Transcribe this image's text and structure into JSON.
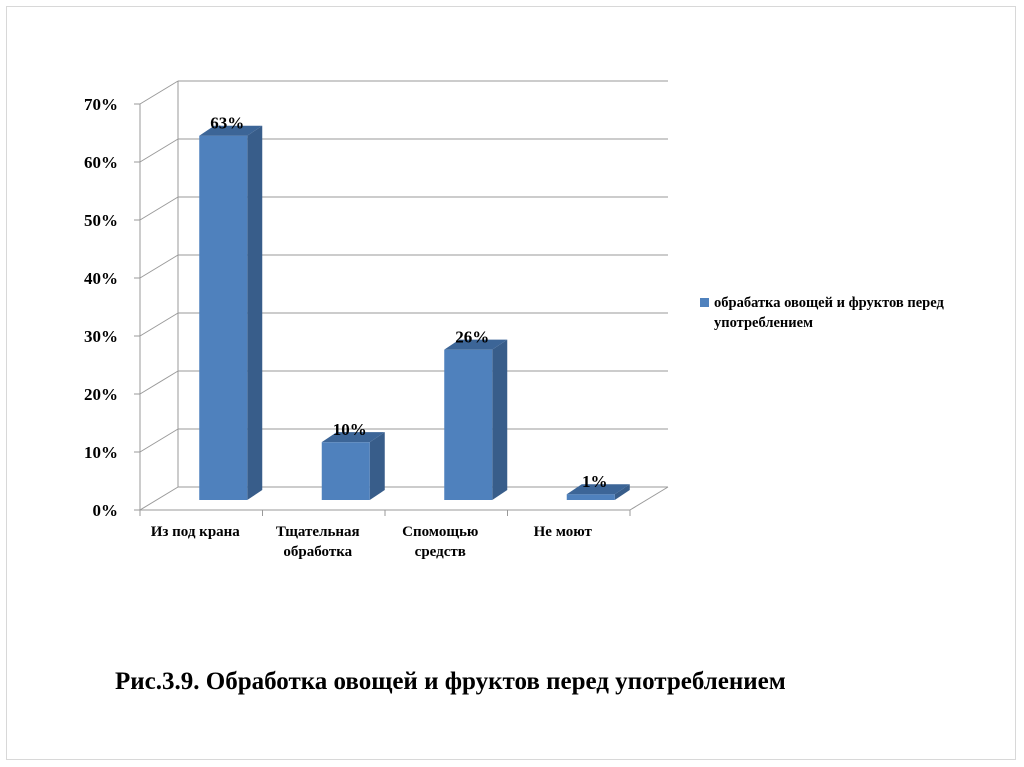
{
  "colors": {
    "bar_front": "#4f81bd",
    "bar_side": "#385d8a",
    "bar_top": "#3c6597",
    "grid": "#9a9a9a",
    "axis_text": "#000000"
  },
  "chart_data": {
    "type": "bar",
    "categories": [
      [
        "Из под крана"
      ],
      [
        "Тщательная",
        "обработка"
      ],
      [
        "Спомощью",
        "средств"
      ],
      [
        "Не моют"
      ]
    ],
    "series": [
      {
        "name": "обрабатка овощей и фруктов перед употреблением",
        "values": [
          63,
          10,
          26,
          1
        ],
        "data_labels": [
          "63%",
          "10%",
          "26%",
          "1%"
        ]
      }
    ],
    "ylim": [
      0,
      70
    ],
    "yticks": [
      0,
      10,
      20,
      30,
      40,
      50,
      60,
      70
    ],
    "ytick_labels": [
      "0%",
      "10%",
      "20%",
      "30%",
      "40%",
      "50%",
      "60%",
      "70%"
    ],
    "grid": true,
    "legend_position": "right",
    "three_d": true
  },
  "caption": {
    "text": "Рис.3.9. Обработка овощей и фруктов перед употреблением"
  }
}
